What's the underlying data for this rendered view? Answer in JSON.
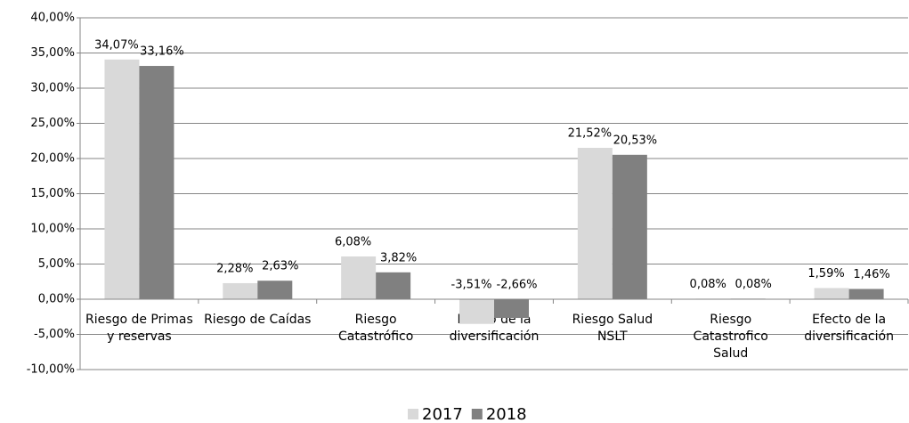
{
  "chart_data": {
    "type": "bar",
    "categories": [
      [
        "Riesgo de Primas",
        "y reservas"
      ],
      [
        "Riesgo de Caídas"
      ],
      [
        "Riesgo",
        "Catastrófico"
      ],
      [
        "Efecto de la",
        "diversificación"
      ],
      [
        "Riesgo Salud",
        "NSLT"
      ],
      [
        "Riesgo",
        "Catastrofico",
        "Salud"
      ],
      [
        "Efecto de la",
        "diversificación"
      ]
    ],
    "series": [
      {
        "name": "2017",
        "color": "#d9d9d9",
        "values": [
          34.07,
          2.28,
          6.08,
          -3.51,
          21.52,
          0.08,
          1.59
        ],
        "value_labels": [
          "34,07%",
          "2,28%",
          "6,08%",
          "-3,51%",
          "21,52%",
          "0,08%",
          "1,59%"
        ]
      },
      {
        "name": "2018",
        "color": "#808080",
        "values": [
          33.16,
          2.63,
          3.82,
          -2.66,
          20.53,
          0.08,
          1.46
        ],
        "value_labels": [
          "33,16%",
          "2,63%",
          "3,82%",
          "-2,66%",
          "20,53%",
          "0,08%",
          "1,46%"
        ]
      }
    ],
    "ylim": [
      -10,
      40
    ],
    "yticks": [
      {
        "value": -10,
        "label": "-10,00%"
      },
      {
        "value": -5,
        "label": "-5,00%"
      },
      {
        "value": 0,
        "label": "0,00%"
      },
      {
        "value": 5,
        "label": "5,00%"
      },
      {
        "value": 10,
        "label": "10,00%"
      },
      {
        "value": 15,
        "label": "15,00%"
      },
      {
        "value": 20,
        "label": "20,00%"
      },
      {
        "value": 25,
        "label": "25,00%"
      },
      {
        "value": 30,
        "label": "30,00%"
      },
      {
        "value": 35,
        "label": "35,00%"
      },
      {
        "value": 40,
        "label": "40,00%"
      }
    ],
    "grid": true,
    "legend": "bottom"
  }
}
